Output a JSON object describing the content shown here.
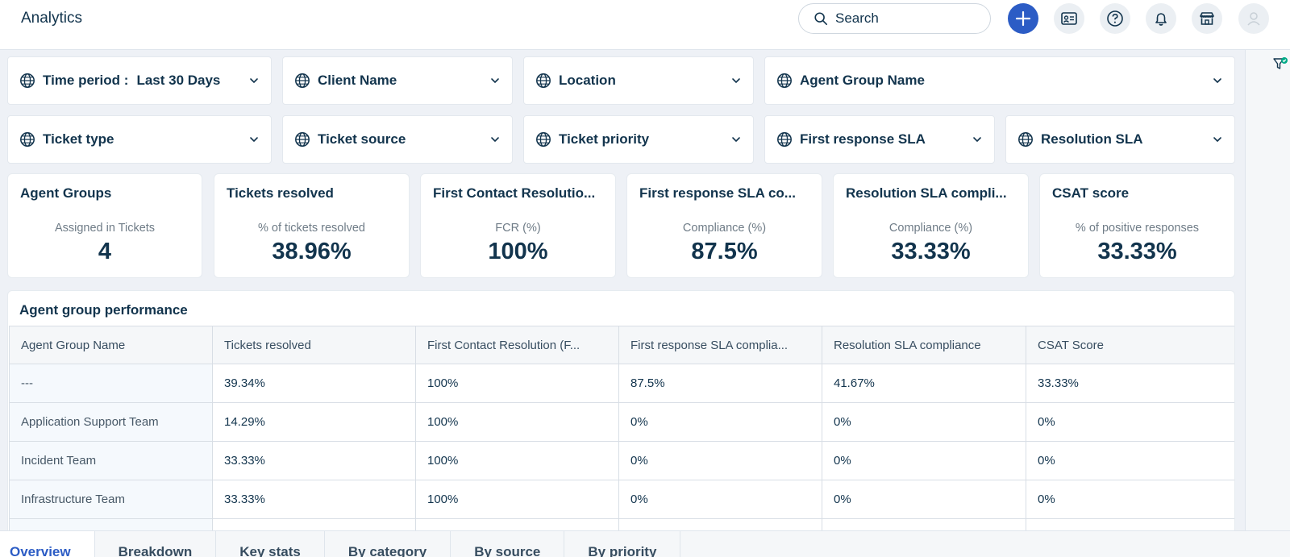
{
  "header": {
    "title": "Analytics",
    "search_placeholder": "Search",
    "icons": [
      "plus-icon",
      "contact-card-icon",
      "help-icon",
      "bell-icon",
      "store-icon",
      "avatar-icon"
    ],
    "accent_color": "#2c5cc5"
  },
  "filters": {
    "row1": [
      {
        "label": "Time period :",
        "value": "Last 30 Days"
      },
      {
        "label": "Client Name",
        "value": ""
      },
      {
        "label": "Location",
        "value": ""
      },
      {
        "label": "Agent Group Name",
        "value": ""
      }
    ],
    "row2": [
      {
        "label": "Ticket type"
      },
      {
        "label": "Ticket source"
      },
      {
        "label": "Ticket priority"
      },
      {
        "label": "First response SLA"
      },
      {
        "label": "Resolution SLA"
      }
    ]
  },
  "kpis": [
    {
      "title": "Agent Groups",
      "subtitle": "Assigned in Tickets",
      "value": "4"
    },
    {
      "title": "Tickets resolved",
      "subtitle": "% of tickets resolved",
      "value": "38.96%"
    },
    {
      "title": "First Contact Resolutio...",
      "subtitle": "FCR (%)",
      "value": "100%"
    },
    {
      "title": "First response SLA co...",
      "subtitle": "Compliance (%)",
      "value": "87.5%"
    },
    {
      "title": "Resolution SLA compli...",
      "subtitle": "Compliance (%)",
      "value": "33.33%"
    },
    {
      "title": "CSAT score",
      "subtitle": "% of positive responses",
      "value": "33.33%"
    }
  ],
  "performance": {
    "title": "Agent group performance",
    "columns": [
      "Agent Group Name",
      "Tickets resolved",
      "First Contact Resolution (F...",
      "First response SLA complia...",
      "Resolution SLA compliance",
      "CSAT Score"
    ],
    "rows": [
      [
        "---",
        "39.34%",
        "100%",
        "87.5%",
        "41.67%",
        "33.33%"
      ],
      [
        "Application Support Team",
        "14.29%",
        "100%",
        "0%",
        "0%",
        "0%"
      ],
      [
        "Incident Team",
        "33.33%",
        "100%",
        "0%",
        "0%",
        "0%"
      ],
      [
        "Infrastructure Team",
        "33.33%",
        "100%",
        "0%",
        "0%",
        "0%"
      ]
    ]
  },
  "tabs": [
    {
      "label": "Overview",
      "active": true
    },
    {
      "label": "Breakdown"
    },
    {
      "label": "Key stats"
    },
    {
      "label": "By category"
    },
    {
      "label": "By source"
    },
    {
      "label": "By priority"
    }
  ]
}
